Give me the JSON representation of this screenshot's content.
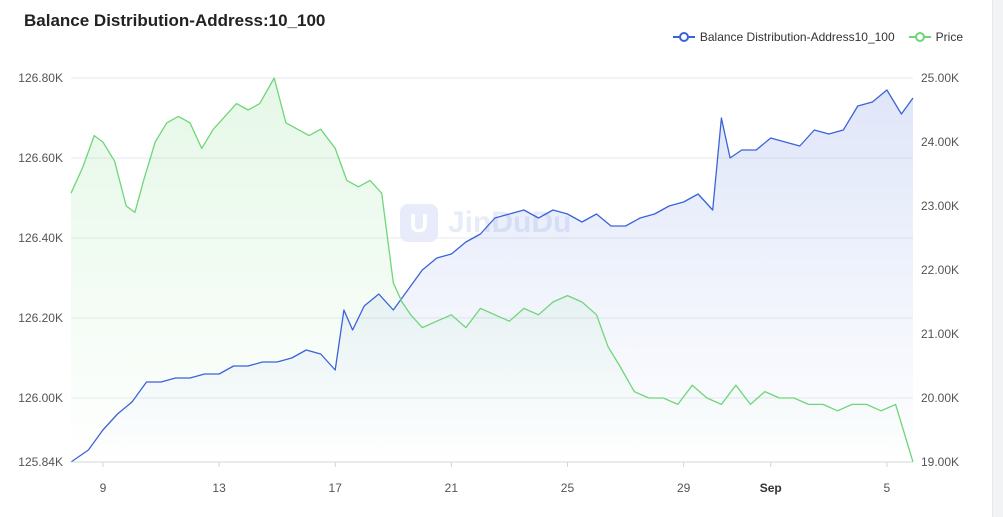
{
  "chart_data": {
    "type": "line",
    "title": "Balance Distribution-Address:10_100",
    "legend": {
      "placement": "top-right"
    },
    "x_ticks": [
      "9",
      "13",
      "17",
      "21",
      "25",
      "29",
      "Sep",
      "5"
    ],
    "y_left": {
      "ticks": [
        "125.84K",
        "126.00K",
        "126.20K",
        "126.40K",
        "126.60K",
        "126.80K"
      ],
      "tick_values": [
        125.84,
        126.0,
        126.2,
        126.4,
        126.6,
        126.8
      ],
      "ylim": [
        125.84,
        126.8
      ]
    },
    "y_right": {
      "ticks": [
        "19.00K",
        "20.00K",
        "21.00K",
        "22.00K",
        "23.00K",
        "24.00K",
        "25.00K"
      ],
      "tick_values": [
        19,
        20,
        21,
        22,
        23,
        24,
        25
      ],
      "ylim": [
        19,
        25
      ]
    },
    "grid": true,
    "series": [
      {
        "name": "Balance Distribution-Address10_100",
        "axis": "left",
        "color": "#3b63d9",
        "x": [
          7.9,
          8.5,
          9.0,
          9.5,
          10.0,
          10.5,
          11.0,
          11.5,
          12.0,
          12.5,
          13.0,
          13.5,
          14.0,
          14.5,
          15.0,
          15.5,
          16.0,
          16.5,
          17.0,
          17.3,
          17.6,
          18.0,
          18.5,
          19.0,
          19.5,
          20.0,
          20.5,
          21.0,
          21.5,
          22.0,
          22.5,
          23.0,
          23.5,
          24.0,
          24.5,
          25.0,
          25.5,
          26.0,
          26.5,
          27.0,
          27.5,
          28.0,
          28.5,
          29.0,
          29.5,
          30.0,
          30.3,
          30.6,
          31.0,
          31.5,
          32.0,
          32.5,
          33.0,
          33.5,
          34.0,
          34.5,
          35.0,
          35.5,
          36.0,
          36.5,
          36.9
        ],
        "values": [
          125.84,
          125.87,
          125.92,
          125.96,
          125.99,
          126.04,
          126.04,
          126.05,
          126.05,
          126.06,
          126.06,
          126.08,
          126.08,
          126.09,
          126.09,
          126.1,
          126.12,
          126.11,
          126.07,
          126.22,
          126.17,
          126.23,
          126.26,
          126.22,
          126.27,
          126.32,
          126.35,
          126.36,
          126.39,
          126.41,
          126.45,
          126.46,
          126.47,
          126.45,
          126.47,
          126.46,
          126.44,
          126.46,
          126.43,
          126.43,
          126.45,
          126.46,
          126.48,
          126.49,
          126.51,
          126.47,
          126.7,
          126.6,
          126.62,
          126.62,
          126.65,
          126.64,
          126.63,
          126.67,
          126.66,
          126.67,
          126.73,
          126.74,
          126.77,
          126.71,
          126.75
        ]
      },
      {
        "name": "Price",
        "axis": "right",
        "color": "#6fd679",
        "x": [
          7.9,
          8.3,
          8.7,
          9.0,
          9.4,
          9.8,
          10.1,
          10.4,
          10.8,
          11.2,
          11.6,
          12.0,
          12.4,
          12.8,
          13.2,
          13.6,
          14.0,
          14.4,
          14.9,
          15.3,
          15.7,
          16.1,
          16.5,
          17.0,
          17.4,
          17.8,
          18.2,
          18.6,
          19.0,
          19.3,
          19.6,
          20.0,
          20.5,
          21.0,
          21.5,
          22.0,
          22.5,
          23.0,
          23.5,
          24.0,
          24.5,
          25.0,
          25.5,
          26.0,
          26.4,
          26.8,
          27.3,
          27.8,
          28.3,
          28.8,
          29.3,
          29.8,
          30.3,
          30.8,
          31.3,
          31.8,
          32.3,
          32.8,
          33.3,
          33.8,
          34.3,
          34.8,
          35.3,
          35.8,
          36.3,
          36.9
        ],
        "values": [
          23.2,
          23.6,
          24.1,
          24.0,
          23.7,
          23.0,
          22.9,
          23.4,
          24.0,
          24.3,
          24.4,
          24.3,
          23.9,
          24.2,
          24.4,
          24.6,
          24.5,
          24.6,
          25.0,
          24.3,
          24.2,
          24.1,
          24.2,
          23.9,
          23.4,
          23.3,
          23.4,
          23.2,
          21.8,
          21.5,
          21.3,
          21.1,
          21.2,
          21.3,
          21.1,
          21.4,
          21.3,
          21.2,
          21.4,
          21.3,
          21.5,
          21.6,
          21.5,
          21.3,
          20.8,
          20.5,
          20.1,
          20.0,
          20.0,
          19.9,
          20.2,
          20.0,
          19.9,
          20.2,
          19.9,
          20.1,
          20.0,
          20.0,
          19.9,
          19.9,
          19.8,
          19.9,
          19.9,
          19.8,
          19.9,
          19.0
        ]
      }
    ]
  }
}
